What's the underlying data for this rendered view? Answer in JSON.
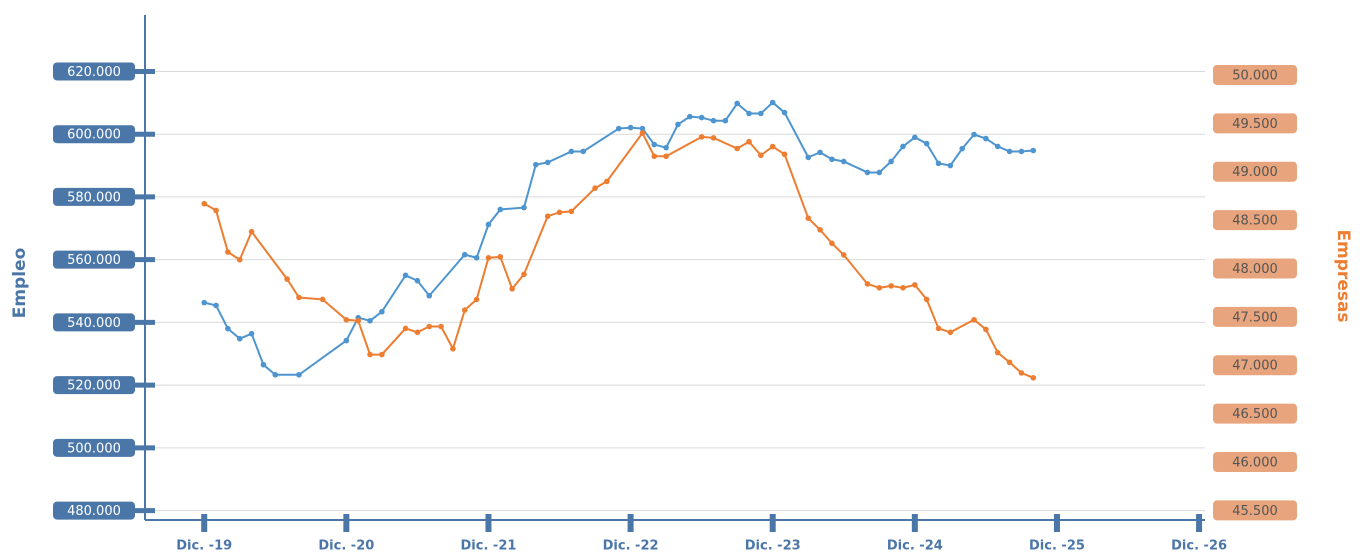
{
  "chart_data": {
    "type": "line",
    "y_label": "Empleo",
    "y2_label": "Empresas",
    "xlim": [
      -5,
      84.5
    ],
    "xticks": [
      {
        "value": 0,
        "label": "Dic. -19"
      },
      {
        "value": 12,
        "label": "Dic. -20"
      },
      {
        "value": 24,
        "label": "Dic. -21"
      },
      {
        "value": 36,
        "label": "Dic. -22"
      },
      {
        "value": 48,
        "label": "Dic. -23"
      },
      {
        "value": 60,
        "label": "Dic. -24"
      },
      {
        "value": 72,
        "label": "Dic. -25"
      },
      {
        "value": 84,
        "label": "Dic. -26"
      }
    ],
    "ylim": [
      477000,
      638000
    ],
    "yticks": [
      {
        "value": 480000,
        "label": "480.000"
      },
      {
        "value": 500000,
        "label": "500.000"
      },
      {
        "value": 520000,
        "label": "520.000"
      },
      {
        "value": 540000,
        "label": "540.000"
      },
      {
        "value": 560000,
        "label": "560.000"
      },
      {
        "value": 580000,
        "label": "580.000"
      },
      {
        "value": 600000,
        "label": "600.000"
      },
      {
        "value": 620000,
        "label": "620.000"
      }
    ],
    "y2lim": [
      45400,
      50620
    ],
    "y2ticks": [
      {
        "value": 45500,
        "label": "45.500"
      },
      {
        "value": 46000,
        "label": "46.000"
      },
      {
        "value": 46500,
        "label": "46.500"
      },
      {
        "value": 47000,
        "label": "47.000"
      },
      {
        "value": 47500,
        "label": "47.500"
      },
      {
        "value": 48000,
        "label": "48.000"
      },
      {
        "value": 48500,
        "label": "48.500"
      },
      {
        "value": 49000,
        "label": "49.000"
      },
      {
        "value": 49500,
        "label": "49.500"
      },
      {
        "value": 50000,
        "label": "50.000"
      }
    ],
    "grid": true,
    "series": [
      {
        "name": "Empleo",
        "color": "#4e95cf",
        "axis": "y",
        "x": [
          0,
          1,
          2,
          3,
          4,
          5,
          6,
          8,
          12,
          13,
          14,
          15,
          17,
          18,
          19,
          22,
          23,
          24,
          25,
          27,
          28,
          29,
          31,
          32,
          35,
          36,
          37,
          38,
          39,
          40,
          41,
          42,
          43,
          44,
          45,
          46,
          47,
          48,
          49,
          51,
          52,
          53,
          54,
          56,
          57,
          58,
          59,
          60,
          61,
          62,
          63,
          64,
          65,
          66,
          67,
          68,
          69,
          70
        ],
        "values": [
          546300,
          545400,
          538000,
          534800,
          536400,
          526500,
          523300,
          523300,
          534200,
          541500,
          540500,
          543400,
          555000,
          553300,
          548500,
          561600,
          560600,
          571200,
          576000,
          576600,
          590300,
          591000,
          594500,
          594500,
          601800,
          602100,
          601800,
          596700,
          595700,
          603100,
          605600,
          605300,
          604300,
          604300,
          609800,
          606600,
          606600,
          610100,
          606900,
          592600,
          594200,
          592000,
          591300,
          587800,
          587800,
          591300,
          596100,
          599000,
          597000,
          590700,
          590000,
          595400,
          599900,
          598600,
          596100,
          594500,
          594500,
          594800
        ]
      },
      {
        "name": "Empresas",
        "color": "#ed7d31",
        "axis": "y2",
        "x": [
          0,
          1,
          2,
          3,
          4,
          7,
          8,
          10,
          12,
          13,
          14,
          15,
          17,
          18,
          19,
          20,
          21,
          22,
          23,
          24,
          25,
          26,
          27,
          29,
          30,
          31,
          33,
          34,
          37,
          38,
          39,
          42,
          43,
          45,
          46,
          47,
          48,
          49,
          51,
          52,
          53,
          54,
          56,
          57,
          58,
          59,
          60,
          61,
          62,
          63,
          65,
          66,
          67,
          68,
          69,
          70
        ],
        "values": [
          48670,
          48600,
          48170,
          48090,
          48380,
          47890,
          47700,
          47680,
          47470,
          47460,
          47110,
          47110,
          47380,
          47340,
          47400,
          47400,
          47170,
          47570,
          47680,
          48110,
          48120,
          47790,
          47940,
          48540,
          48580,
          48590,
          48830,
          48900,
          49400,
          49160,
          49160,
          49360,
          49350,
          49240,
          49310,
          49170,
          49260,
          49180,
          48520,
          48400,
          48260,
          48140,
          47840,
          47800,
          47820,
          47800,
          47830,
          47680,
          47380,
          47340,
          47470,
          47370,
          47130,
          47030,
          46920,
          46870
        ]
      }
    ]
  }
}
